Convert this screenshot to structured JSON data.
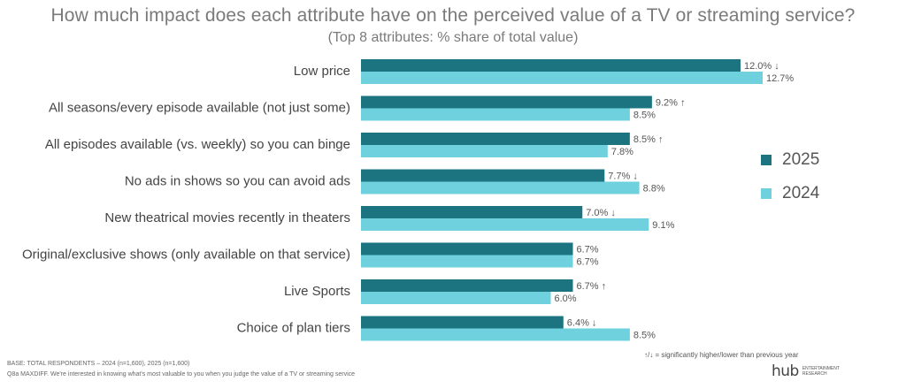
{
  "title": "How much impact does each attribute have on the perceived value of a TV or streaming service?",
  "subtitle": "(Top 8 attributes: % share of total value)",
  "colors": {
    "s2025": "#1b7480",
    "s2024": "#6fd0de"
  },
  "chart_data": {
    "type": "bar",
    "orientation": "horizontal",
    "title": "How much impact does each attribute have on the perceived value of a TV or streaming service?",
    "subtitle": "(Top 8 attributes: % share of total value)",
    "categories": [
      "Low price",
      "All seasons/every episode available (not just some)",
      "All episodes available (vs. weekly) so you can binge",
      "No ads in shows so you can avoid ads",
      "New theatrical movies recently in theaters",
      "Original/exclusive shows (only available on that service)",
      "Live Sports",
      "Choice of plan tiers"
    ],
    "series": [
      {
        "name": "2025",
        "values": [
          12.0,
          9.2,
          8.5,
          7.7,
          7.0,
          6.7,
          6.7,
          6.4
        ],
        "labels": [
          "12.0%",
          "9.2%",
          "8.5%",
          "7.7%",
          "7.0%",
          "6.7%",
          "6.7%",
          "6.4%"
        ],
        "markers": [
          "↓",
          "↑",
          "↑",
          "↓",
          "↓",
          "",
          "↑",
          "↓"
        ]
      },
      {
        "name": "2024",
        "values": [
          12.7,
          8.5,
          7.8,
          8.8,
          9.1,
          6.7,
          6.0,
          8.5
        ],
        "labels": [
          "12.7%",
          "8.5%",
          "7.8%",
          "8.8%",
          "9.1%",
          "6.7%",
          "6.0%",
          "8.5%"
        ]
      }
    ],
    "xlim": [
      0,
      12.7
    ],
    "legend": "right",
    "grid": false
  },
  "significance_note": "↑/↓ = significantly higher/lower than previous year",
  "footnotes": [
    "BASE: TOTAL RESPONDENTS – 2024 (n=1,600), 2025 (n=1,600)",
    "Q8a MAXDIFF. We're interested in knowing what's most valuable to you when you judge the value of a TV or streaming service"
  ],
  "logo": {
    "main": "hub",
    "sub": "ENTERTAINMENT RESEARCH"
  }
}
